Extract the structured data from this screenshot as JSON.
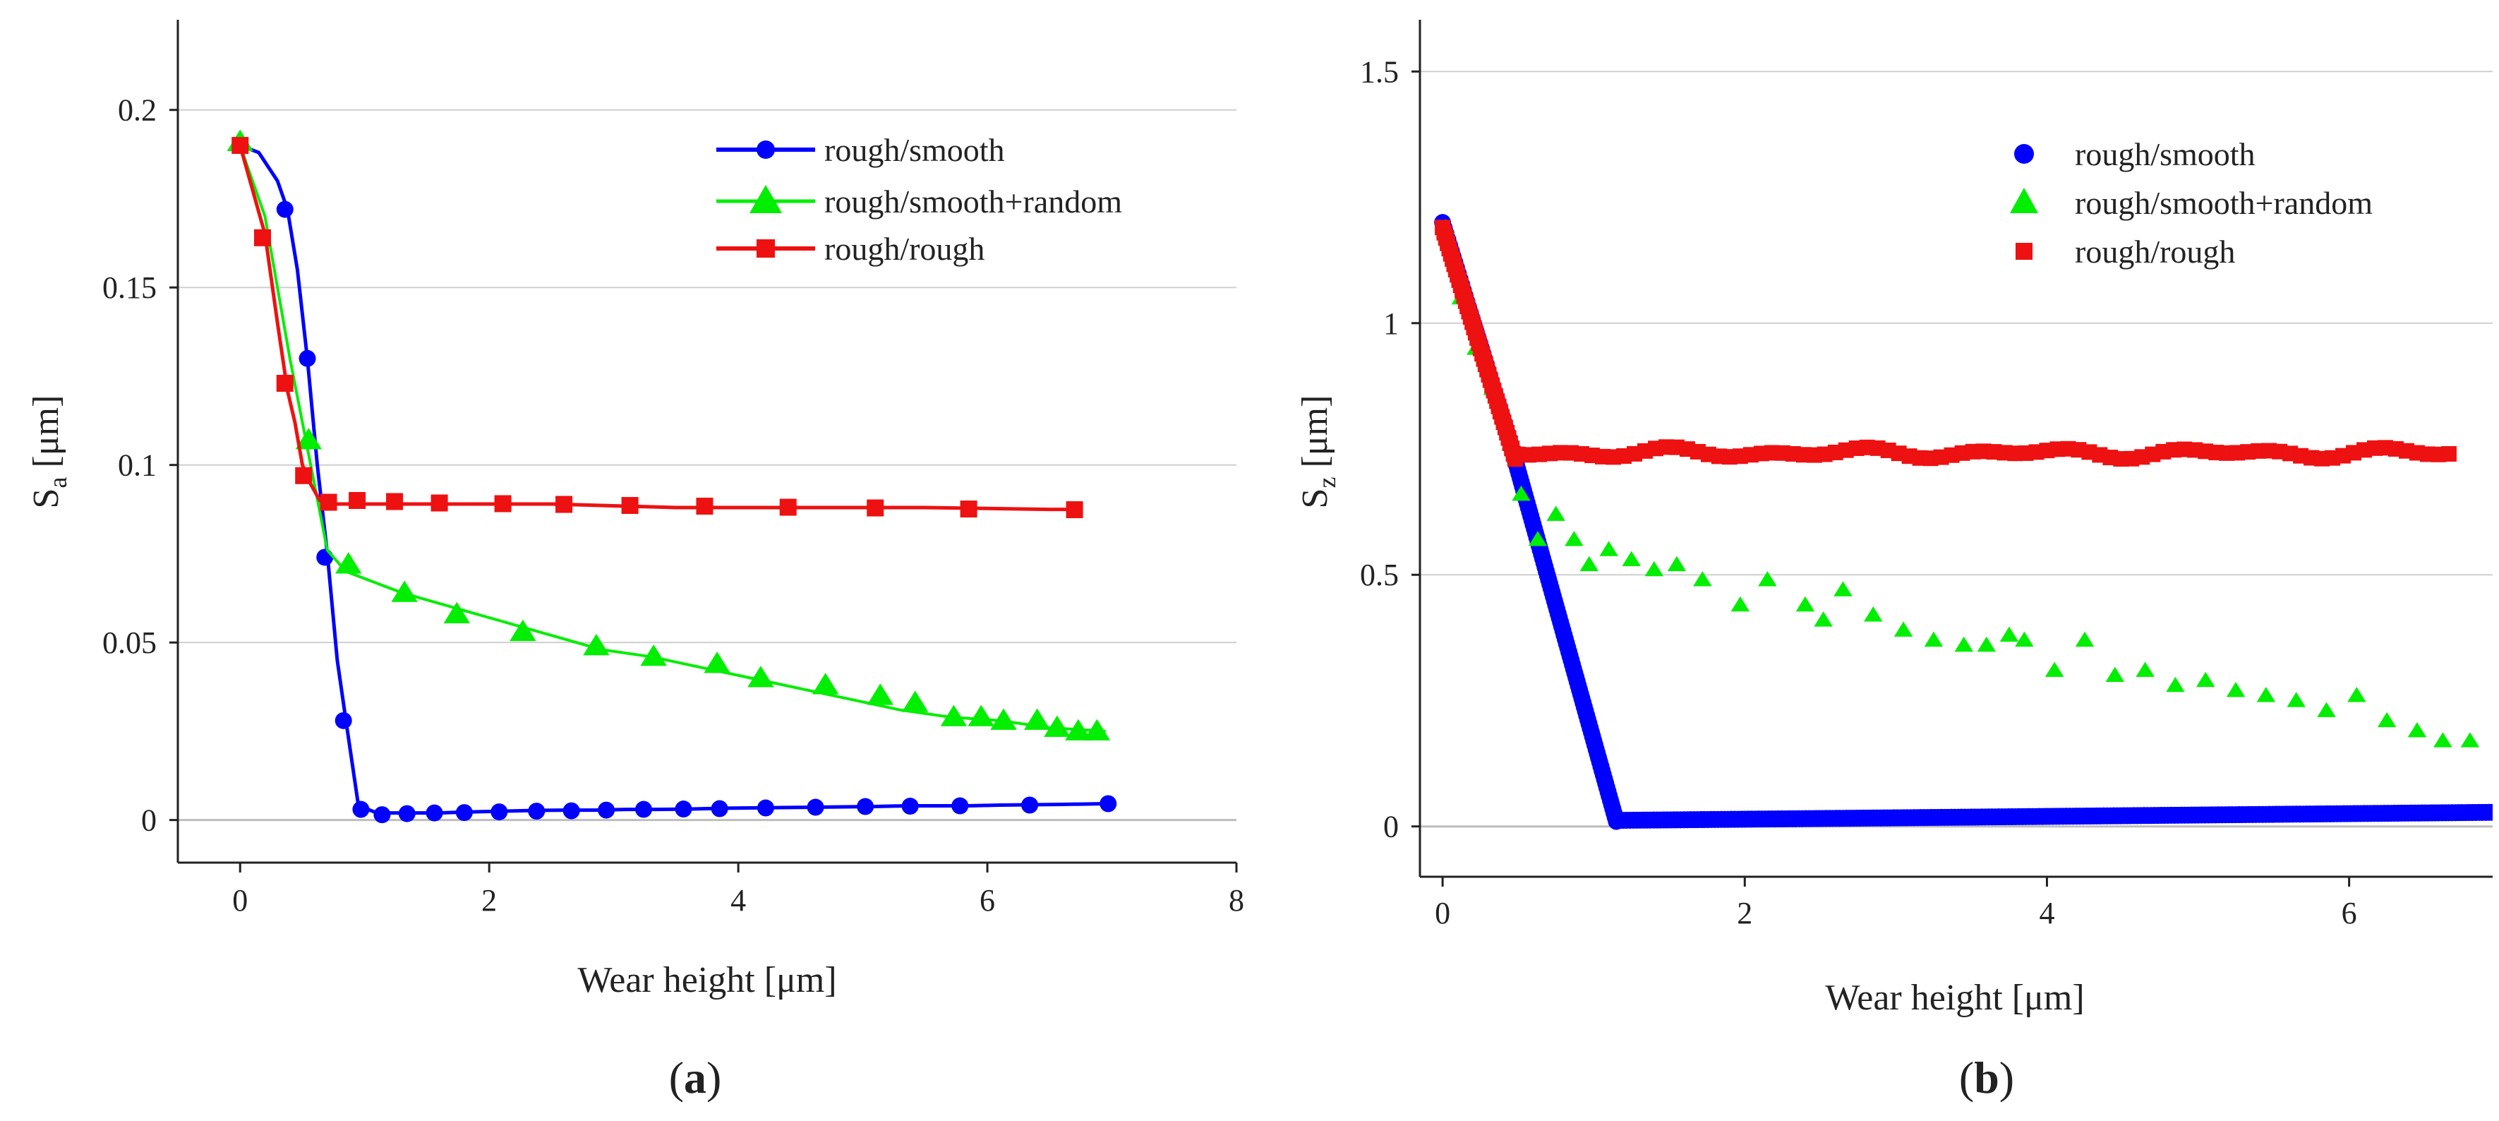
{
  "chart_data": [
    {
      "panel_label": "a",
      "type": "line",
      "xlabel": "Wear height [μm]",
      "ylabel_main": "S",
      "ylabel_sub": "a",
      "ylabel_unit": " [μm]",
      "xlim": [
        -0.5,
        8
      ],
      "ylim": [
        -0.012,
        0.225
      ],
      "xticks": [
        0,
        2,
        4,
        6,
        8
      ],
      "xtick_labels": [
        "0",
        "2",
        "4",
        "6",
        "8"
      ],
      "yticks": [
        0,
        0.05,
        0.1,
        0.15,
        0.2
      ],
      "ytick_labels": [
        "0",
        "0.05",
        "0.1",
        "0.15",
        "0.2"
      ],
      "grid": true,
      "legend_position": "top-right",
      "series": [
        {
          "name": "rough/smooth",
          "color": "#0000ff",
          "marker": "circle",
          "line": true,
          "x": [
            0,
            0.15,
            0.3,
            0.38,
            0.46,
            0.54,
            0.62,
            0.7,
            0.78,
            0.85,
            0.95,
            1.1,
            1.35,
            1.6,
            1.85,
            2.1,
            2.35,
            2.6,
            2.85,
            3.1,
            3.35,
            3.6,
            3.85,
            4.1,
            4.35,
            4.6,
            4.85,
            5.1,
            5.35,
            5.6,
            5.85,
            6.1,
            6.35,
            6.6,
            6.95
          ],
          "y": [
            0.19,
            0.188,
            0.18,
            0.172,
            0.155,
            0.13,
            0.1,
            0.075,
            0.045,
            0.028,
            0.004,
            0.002,
            0.002,
            0.002,
            0.0023,
            0.0025,
            0.0027,
            0.0028,
            0.0028,
            0.003,
            0.003,
            0.0031,
            0.0033,
            0.0034,
            0.0035,
            0.0036,
            0.0037,
            0.0038,
            0.004,
            0.004,
            0.004,
            0.0042,
            0.0043,
            0.0044,
            0.0046
          ],
          "marker_x": [
            0.36,
            0.54,
            0.68,
            0.83,
            0.97,
            1.14,
            1.34,
            1.56,
            1.8,
            2.08,
            2.38,
            2.66,
            2.94,
            3.24,
            3.56,
            3.85,
            4.22,
            4.62,
            5.02,
            5.38,
            5.78,
            6.34,
            6.97
          ],
          "marker_y": [
            0.172,
            0.13,
            0.074,
            0.028,
            0.003,
            0.0015,
            0.0018,
            0.002,
            0.0021,
            0.0023,
            0.0025,
            0.0026,
            0.0028,
            0.003,
            0.0031,
            0.0032,
            0.0034,
            0.0036,
            0.0038,
            0.0039,
            0.004,
            0.0042,
            0.0046
          ]
        },
        {
          "name": "rough/smooth+random",
          "color": "#00ee00",
          "marker": "triangle",
          "line": true,
          "x": [
            0,
            0.2,
            0.4,
            0.55,
            0.7,
            0.85,
            1.0,
            1.3,
            1.7,
            2.1,
            2.5,
            2.9,
            3.3,
            3.7,
            4.1,
            4.5,
            4.9,
            5.3,
            5.7,
            6.1,
            6.5,
            6.95
          ],
          "y": [
            0.19,
            0.17,
            0.13,
            0.103,
            0.076,
            0.07,
            0.068,
            0.064,
            0.06,
            0.056,
            0.052,
            0.048,
            0.046,
            0.043,
            0.04,
            0.037,
            0.034,
            0.031,
            0.029,
            0.028,
            0.026,
            0.025
          ],
          "marker_x": [
            0,
            0.55,
            0.87,
            1.32,
            1.74,
            2.27,
            2.86,
            3.32,
            3.83,
            4.18,
            4.7,
            5.14,
            5.42,
            5.73,
            5.95,
            6.13,
            6.4,
            6.56,
            6.73,
            6.88
          ],
          "marker_y": [
            0.191,
            0.107,
            0.072,
            0.064,
            0.058,
            0.053,
            0.049,
            0.046,
            0.044,
            0.04,
            0.038,
            0.035,
            0.033,
            0.029,
            0.029,
            0.028,
            0.028,
            0.026,
            0.025,
            0.025
          ]
        },
        {
          "name": "rough/rough",
          "color": "#ee1111",
          "marker": "square",
          "line": true,
          "x": [
            0,
            0.2,
            0.3,
            0.38,
            0.44,
            0.5,
            0.56,
            0.64,
            0.72,
            0.85,
            1.5,
            2.5,
            3.5,
            4.5,
            5.5,
            6.5,
            6.7
          ],
          "y": [
            0.19,
            0.165,
            0.14,
            0.121,
            0.112,
            0.1,
            0.095,
            0.09,
            0.089,
            0.089,
            0.089,
            0.089,
            0.088,
            0.088,
            0.088,
            0.0875,
            0.0875
          ],
          "marker_x": [
            0,
            0.18,
            0.36,
            0.51,
            0.71,
            0.94,
            1.24,
            1.6,
            2.11,
            2.6,
            3.13,
            3.73,
            4.4,
            5.1,
            5.85,
            6.7
          ],
          "marker_y": [
            0.19,
            0.164,
            0.123,
            0.097,
            0.0895,
            0.09,
            0.0897,
            0.0893,
            0.0891,
            0.0889,
            0.0886,
            0.0884,
            0.0881,
            0.0879,
            0.0876,
            0.0874
          ]
        }
      ]
    },
    {
      "panel_label": "b",
      "type": "scatter",
      "xlabel": "Wear height [μm]",
      "ylabel_main": "S",
      "ylabel_sub": "z",
      "ylabel_unit": " [μm]",
      "xlim": [
        -0.15,
        6.95
      ],
      "ylim": [
        -0.1,
        1.6
      ],
      "xticks": [
        0,
        2,
        4,
        6
      ],
      "xtick_labels": [
        "0",
        "2",
        "4",
        "6"
      ],
      "yticks": [
        0,
        0.5,
        1,
        1.5
      ],
      "ytick_labels": [
        "0",
        "0.5",
        "1",
        "1.5"
      ],
      "grid": true,
      "legend_position": "top-right",
      "series": [
        {
          "name": "rough/smooth",
          "color": "#0000ff",
          "marker": "circle",
          "line": false,
          "dense_segments": [
            {
              "x0": 0.0,
              "y0": 1.2,
              "x1": 0.45,
              "y1": 0.76,
              "count": 40
            },
            {
              "x0": 0.45,
              "y0": 0.76,
              "x1": 1.15,
              "y1": 0.01,
              "count": 90
            },
            {
              "x0": 1.15,
              "y0": 0.012,
              "x1": 6.95,
              "y1": 0.028,
              "count": 260
            }
          ]
        },
        {
          "name": "rough/smooth+random",
          "color": "#00ee00",
          "marker": "triangle",
          "line": false,
          "x": [
            0.02,
            0.12,
            0.22,
            0.33,
            0.45,
            0.52,
            0.63,
            0.75,
            0.87,
            0.97,
            1.1,
            1.25,
            1.4,
            1.55,
            1.72,
            1.97,
            2.15,
            2.4,
            2.52,
            2.65,
            2.85,
            3.05,
            3.25,
            3.45,
            3.6,
            3.75,
            3.85,
            4.05,
            4.25,
            4.45,
            4.65,
            4.85,
            5.05,
            5.25,
            5.45,
            5.65,
            5.85,
            6.05,
            6.25,
            6.45,
            6.62,
            6.8
          ],
          "y": [
            1.19,
            1.05,
            0.95,
            0.87,
            0.76,
            0.66,
            0.57,
            0.62,
            0.57,
            0.52,
            0.55,
            0.53,
            0.51,
            0.52,
            0.49,
            0.44,
            0.49,
            0.44,
            0.41,
            0.47,
            0.42,
            0.39,
            0.37,
            0.36,
            0.36,
            0.38,
            0.37,
            0.31,
            0.37,
            0.3,
            0.31,
            0.28,
            0.29,
            0.27,
            0.26,
            0.25,
            0.23,
            0.26,
            0.21,
            0.19,
            0.17,
            0.17
          ]
        },
        {
          "name": "rough/rough",
          "color": "#ee1111",
          "marker": "square",
          "line": false,
          "dense_segments": [
            {
              "x0": 0.0,
              "y0": 1.19,
              "x1": 0.48,
              "y1": 0.73,
              "count": 45
            }
          ],
          "plateau": {
            "x_start": 0.5,
            "x_end": 6.7,
            "step": 0.07,
            "base": 0.742,
            "amplitude": 0.012
          }
        }
      ]
    }
  ]
}
